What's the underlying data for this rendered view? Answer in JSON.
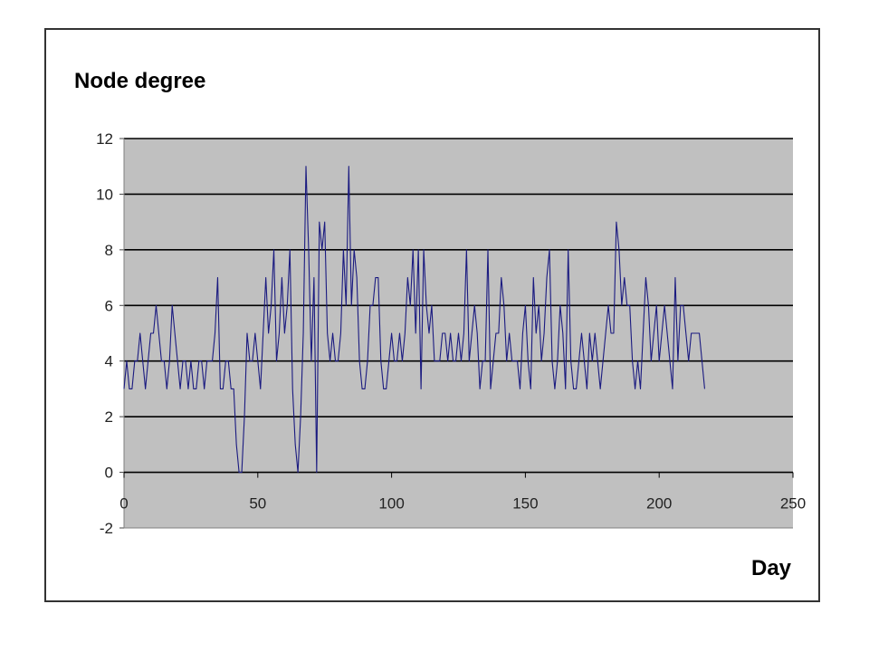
{
  "chart_data": {
    "type": "line",
    "ylabel": "Node degree",
    "xlabel": "Day",
    "xlim": [
      0,
      250
    ],
    "ylim": [
      -2,
      12
    ],
    "xticks": [
      0,
      50,
      100,
      150,
      200,
      250
    ],
    "yticks": [
      -2,
      0,
      2,
      4,
      6,
      8,
      10,
      12
    ],
    "xtick_labels": [
      "0",
      "50",
      "100",
      "150",
      "200",
      "250"
    ],
    "ytick_labels": [
      "-2",
      "0",
      "2",
      "4",
      "6",
      "8",
      "10",
      "12"
    ],
    "grid": true,
    "plot_background": "#c0c0c0",
    "gridline_color": "#000000",
    "line_color": "#1a1a80",
    "series": [
      {
        "y": [
          3,
          4,
          3,
          3,
          4,
          4,
          5,
          4,
          3,
          4,
          5,
          5,
          6,
          5,
          4,
          4,
          3,
          4,
          6,
          5,
          4,
          3,
          4,
          4,
          3,
          4,
          3,
          3,
          4,
          4,
          3,
          4,
          4,
          4,
          5,
          7,
          3,
          3,
          4,
          4,
          3,
          3,
          1,
          0,
          0,
          2,
          5,
          4,
          4,
          5,
          4,
          3,
          5,
          7,
          5,
          6,
          8,
          4,
          5,
          7,
          5,
          6,
          8,
          3,
          1,
          0,
          2,
          5,
          11,
          8,
          4,
          7,
          0,
          9,
          8,
          9,
          5,
          4,
          5,
          4,
          4,
          5,
          8,
          6,
          11,
          6,
          8,
          7,
          4,
          3,
          3,
          4,
          6,
          6,
          7,
          7,
          4,
          3,
          3,
          4,
          5,
          4,
          4,
          5,
          4,
          5,
          7,
          6,
          8,
          5,
          8,
          3,
          8,
          6,
          5,
          6,
          4,
          4,
          4,
          5,
          5,
          4,
          5,
          4,
          4,
          5,
          4,
          5,
          8,
          4,
          5,
          6,
          5,
          3,
          4,
          4,
          8,
          3,
          4,
          5,
          5,
          7,
          6,
          4,
          5,
          4,
          4,
          4,
          3,
          5,
          6,
          4,
          3,
          7,
          5,
          6,
          4,
          5,
          7,
          8,
          4,
          3,
          4,
          6,
          5,
          3,
          8,
          4,
          3,
          3,
          4,
          5,
          4,
          3,
          5,
          4,
          5,
          4,
          3,
          4,
          5,
          6,
          5,
          5,
          9,
          8,
          6,
          7,
          6,
          6,
          4,
          3,
          4,
          3,
          5,
          7,
          6,
          4,
          5,
          6,
          4,
          5,
          6,
          5,
          4,
          3,
          7,
          4,
          6,
          6,
          5,
          4,
          5,
          5,
          5,
          5,
          4,
          3
        ]
      }
    ]
  }
}
